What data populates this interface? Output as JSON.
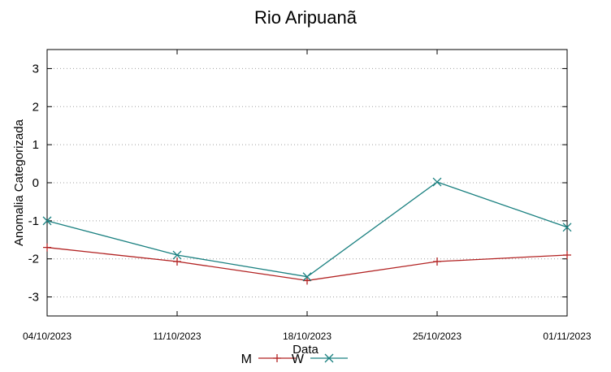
{
  "chart_data": {
    "type": "line",
    "title": "Rio Aripuanã",
    "xlabel": "Data",
    "ylabel": "Anomalia Categorizada",
    "categories": [
      "04/10/2023",
      "11/10/2023",
      "18/10/2023",
      "25/10/2023",
      "01/11/2023"
    ],
    "yticks": [
      3,
      2,
      1,
      0,
      -1,
      -2,
      -3
    ],
    "ylim": [
      -3.5,
      3.5
    ],
    "grid": true,
    "legend": "bottom",
    "series": [
      {
        "name": "M",
        "color": "#b22222",
        "marker": "plus",
        "values": [
          -1.7,
          -2.07,
          -2.57,
          -2.07,
          -1.9
        ]
      },
      {
        "name": "W",
        "color": "#1a8080",
        "marker": "cross",
        "values": [
          -1.0,
          -1.9,
          -2.47,
          0.02,
          -1.17
        ]
      }
    ]
  }
}
